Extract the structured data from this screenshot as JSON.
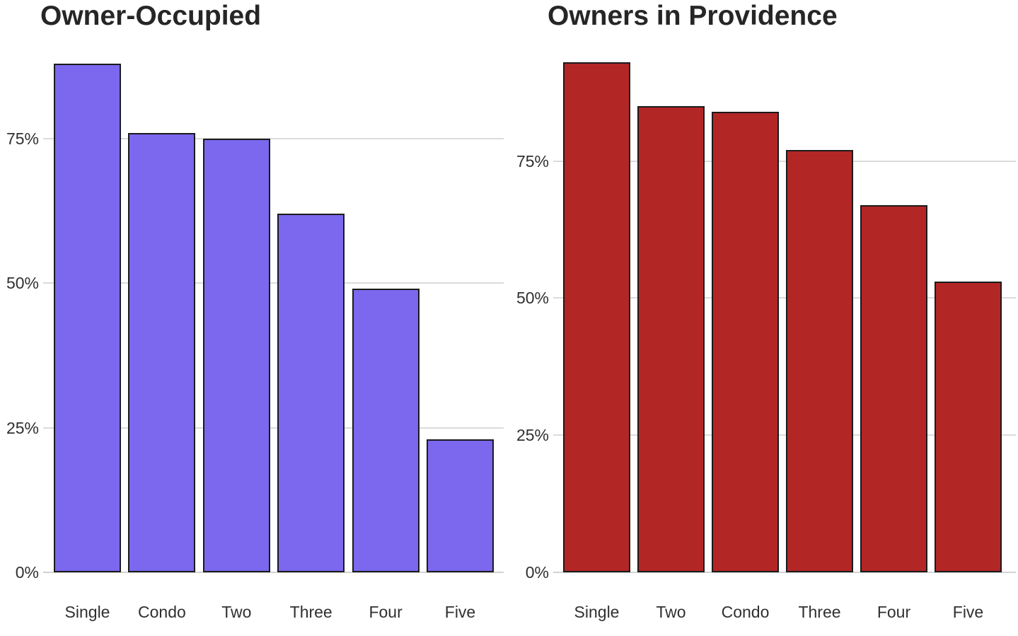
{
  "figure": {
    "background_color": "#FFFFFF",
    "panel_count": 2
  },
  "styles": {
    "gridline_color": "#DBDBDB",
    "axis_line_color": "#D2D2D2",
    "title_color": "#262626",
    "tick_label_color": "#303030",
    "bar_border_color": "#1B1B1B"
  },
  "chart_data": [
    {
      "type": "bar",
      "title": "Owner-Occupied",
      "categories": [
        "Single",
        "Condo",
        "Two",
        "Three",
        "Four",
        "Five"
      ],
      "values": [
        88,
        76,
        75,
        62,
        49,
        23
      ],
      "unit": "percent",
      "xlabel": "",
      "ylabel": "",
      "yticks": [
        0,
        25,
        50,
        75
      ],
      "ytick_labels": [
        "0%",
        "25%",
        "50%",
        "75%"
      ],
      "ylim": [
        0,
        92
      ],
      "grid": "horizontal",
      "legend": "none",
      "bar_color": "#7B68EE",
      "bar_border_color": "#1B1B1B"
    },
    {
      "type": "bar",
      "title": "Owners in Providence",
      "categories": [
        "Single",
        "Two",
        "Condo",
        "Three",
        "Four",
        "Five"
      ],
      "values": [
        93,
        85,
        84,
        77,
        67,
        53
      ],
      "unit": "percent",
      "xlabel": "",
      "ylabel": "",
      "yticks": [
        0,
        25,
        50,
        75
      ],
      "ytick_labels": [
        "0%",
        "25%",
        "50%",
        "75%"
      ],
      "ylim": [
        0,
        97
      ],
      "grid": "horizontal",
      "legend": "none",
      "bar_color": "#B32626",
      "bar_border_color": "#1B1B1B"
    }
  ]
}
